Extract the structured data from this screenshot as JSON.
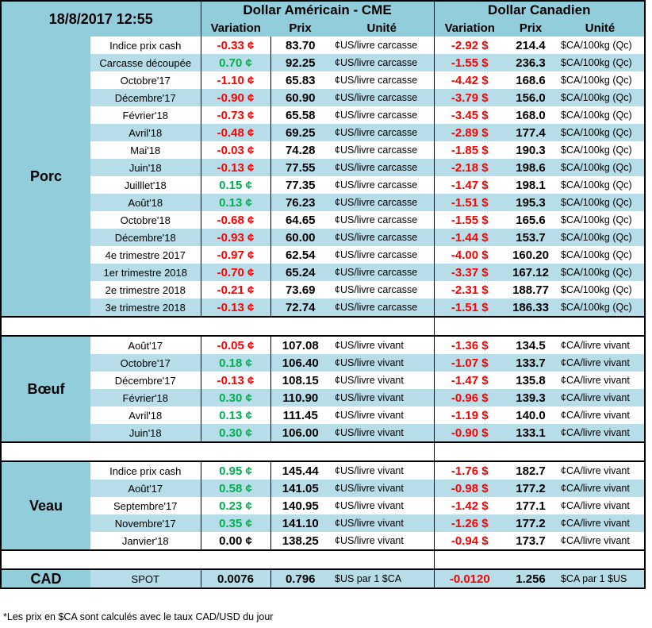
{
  "header": {
    "timestamp": "18/8/2017 12:55",
    "usd_title": "Dollar Américain - CME",
    "cad_title": "Dollar Canadien",
    "variation": "Variation",
    "prix": "Prix",
    "unite": "Unité"
  },
  "colors": {
    "negative": "#ff0000",
    "positive": "#00b050",
    "header_bg": "#92cddc",
    "row_alt_bg": "#b7dde8"
  },
  "sections": [
    {
      "label": "Porc",
      "rows": [
        [
          "Indice prix cash",
          "-0.33 ¢",
          "83.70",
          "¢US/livre carcasse",
          "-2.92 $",
          "214.4",
          "$CA/100kg (Qc)"
        ],
        [
          "Carcasse découpée",
          "0.70 ¢",
          "92.25",
          "¢US/livre carcasse",
          "-1.55 $",
          "236.3",
          "$CA/100kg (Qc)"
        ],
        [
          "Octobre'17",
          "-1.10 ¢",
          "65.83",
          "¢US/livre carcasse",
          "-4.42 $",
          "168.6",
          "$CA/100kg (Qc)"
        ],
        [
          "Décembre'17",
          "-0.90 ¢",
          "60.90",
          "¢US/livre carcasse",
          "-3.79 $",
          "156.0",
          "$CA/100kg (Qc)"
        ],
        [
          "Février'18",
          "-0.73 ¢",
          "65.58",
          "¢US/livre carcasse",
          "-3.45 $",
          "168.0",
          "$CA/100kg (Qc)"
        ],
        [
          "Avril'18",
          "-0.48 ¢",
          "69.25",
          "¢US/livre carcasse",
          "-2.89 $",
          "177.4",
          "$CA/100kg (Qc)"
        ],
        [
          "Mai'18",
          "-0.03 ¢",
          "74.28",
          "¢US/livre carcasse",
          "-1.85 $",
          "190.3",
          "$CA/100kg (Qc)"
        ],
        [
          "Juin'18",
          "-0.13 ¢",
          "77.55",
          "¢US/livre carcasse",
          "-2.18 $",
          "198.6",
          "$CA/100kg (Qc)"
        ],
        [
          "Juilllet'18",
          "0.15 ¢",
          "77.35",
          "¢US/livre carcasse",
          "-1.47 $",
          "198.1",
          "$CA/100kg (Qc)"
        ],
        [
          "Août'18",
          "0.13 ¢",
          "76.23",
          "¢US/livre carcasse",
          "-1.51 $",
          "195.3",
          "$CA/100kg (Qc)"
        ],
        [
          "Octobre'18",
          "-0.68 ¢",
          "64.65",
          "¢US/livre carcasse",
          "-1.55 $",
          "165.6",
          "$CA/100kg (Qc)"
        ],
        [
          "Décembre'18",
          "-0.93 ¢",
          "60.00",
          "¢US/livre carcasse",
          "-1.44 $",
          "153.7",
          "$CA/100kg (Qc)"
        ],
        [
          "4e trimestre 2017",
          "-0.97 ¢",
          "62.54",
          "¢US/livre carcasse",
          "-4.00 $",
          "160.20",
          "$CA/100kg (Qc)"
        ],
        [
          "1er trimestre 2018",
          "-0.70 ¢",
          "65.24",
          "¢US/livre carcasse",
          "-3.37 $",
          "167.12",
          "$CA/100kg (Qc)"
        ],
        [
          "2e trimestre 2018",
          "-0.21 ¢",
          "73.69",
          "¢US/livre carcasse",
          "-2.31 $",
          "188.77",
          "$CA/100kg (Qc)"
        ],
        [
          "3e trimestre 2018",
          "-0.13 ¢",
          "72.74",
          "¢US/livre carcasse",
          "-1.51 $",
          "186.33",
          "$CA/100kg (Qc)"
        ]
      ]
    },
    {
      "label": "Bœuf",
      "rows": [
        [
          "Août'17",
          "-0.05 ¢",
          "107.08",
          "¢US/livre vivant",
          "-1.36 $",
          "134.5",
          "¢CA/livre vivant"
        ],
        [
          "Octobre'17",
          "0.18 ¢",
          "106.40",
          "¢US/livre vivant",
          "-1.07 $",
          "133.7",
          "¢CA/livre vivant"
        ],
        [
          "Décembre'17",
          "-0.13 ¢",
          "108.15",
          "¢US/livre vivant",
          "-1.47 $",
          "135.8",
          "¢CA/livre vivant"
        ],
        [
          "Février'18",
          "0.30 ¢",
          "110.90",
          "¢US/livre vivant",
          "-0.96 $",
          "139.3",
          "¢CA/livre vivant"
        ],
        [
          "Avril'18",
          "0.13 ¢",
          "111.45",
          "¢US/livre vivant",
          "-1.19 $",
          "140.0",
          "¢CA/livre vivant"
        ],
        [
          "Juin'18",
          "0.30 ¢",
          "106.00",
          "¢US/livre vivant",
          "-0.90 $",
          "133.1",
          "¢CA/livre vivant"
        ]
      ]
    },
    {
      "label": "Veau",
      "rows": [
        [
          "Indice prix cash",
          "0.95 ¢",
          "145.44",
          "¢US/livre vivant",
          "-1.76 $",
          "182.7",
          "¢CA/livre vivant"
        ],
        [
          "Août'17",
          "0.58 ¢",
          "141.05",
          "¢US/livre vivant",
          "-0.98 $",
          "177.2",
          "¢CA/livre vivant"
        ],
        [
          "Septembre'17",
          "0.23 ¢",
          "140.95",
          "¢US/livre vivant",
          "-1.42 $",
          "177.1",
          "¢CA/livre vivant"
        ],
        [
          "Novembre'17",
          "0.35 ¢",
          "141.10",
          "¢US/livre vivant",
          "-1.26 $",
          "177.2",
          "¢CA/livre vivant"
        ],
        [
          "Janvier'18",
          "0.00 ¢",
          "138.25",
          "¢US/livre vivant",
          "-0.94 $",
          "173.7",
          "¢CA/livre vivant"
        ]
      ]
    },
    {
      "label": "CAD",
      "rows": [
        [
          "SPOT",
          "0.0076",
          "0.796",
          "$US par 1 $CA",
          "-0.0120",
          "1.256",
          "$CA par 1 $US"
        ]
      ]
    }
  ],
  "footnote": "*Les  prix en $CA sont calculés avec le taux CAD/USD du jour"
}
